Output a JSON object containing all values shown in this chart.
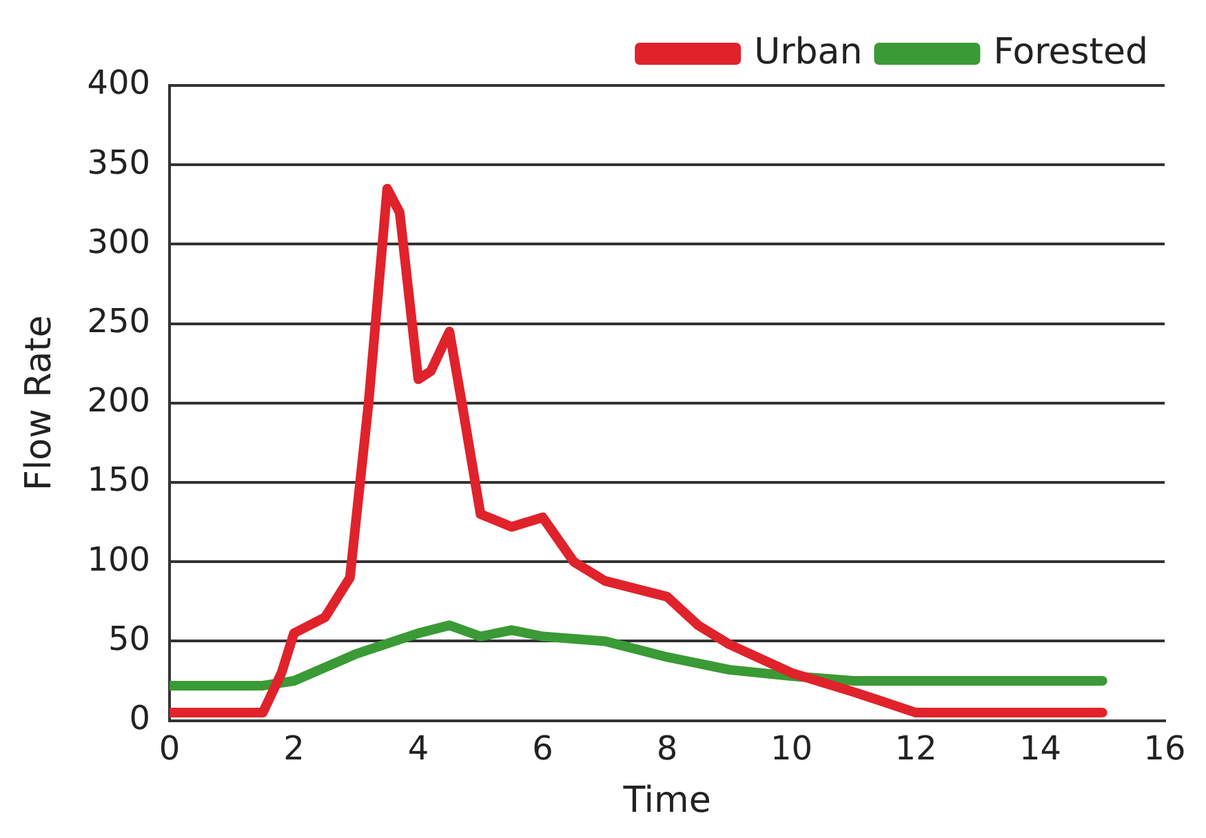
{
  "chart_data": {
    "type": "line",
    "xlabel": "Time",
    "ylabel": "Flow Rate",
    "xlim": [
      0,
      16
    ],
    "xticks": [
      0,
      2,
      4,
      6,
      8,
      10,
      12,
      14,
      16
    ],
    "ylim": [
      0,
      400
    ],
    "yticks": [
      0,
      50,
      100,
      150,
      200,
      250,
      300,
      350,
      400
    ],
    "grid": "y",
    "legend": "top right",
    "marker": "none",
    "line_style": "solid",
    "series": [
      {
        "name": "Urban",
        "color": "#e0222b",
        "x": [
          0,
          1.5,
          1.8,
          2,
          2.5,
          2.9,
          3.2,
          3.5,
          3.7,
          4,
          4.2,
          4.5,
          4.7,
          5,
          5.5,
          6,
          6.5,
          7,
          8,
          8.5,
          9,
          10,
          11,
          12,
          15
        ],
        "values": [
          5,
          5,
          30,
          55,
          65,
          90,
          200,
          335,
          320,
          215,
          220,
          245,
          200,
          130,
          122,
          128,
          100,
          88,
          78,
          60,
          48,
          30,
          18,
          5,
          5
        ]
      },
      {
        "name": "Forested",
        "color": "#3a9a35",
        "x": [
          0,
          1.5,
          2,
          3,
          4,
          4.5,
          5,
          5.5,
          6,
          7,
          8,
          9,
          10,
          11,
          15
        ],
        "values": [
          22,
          22,
          25,
          42,
          55,
          60,
          53,
          57,
          53,
          50,
          40,
          32,
          28,
          25,
          25
        ]
      }
    ]
  }
}
